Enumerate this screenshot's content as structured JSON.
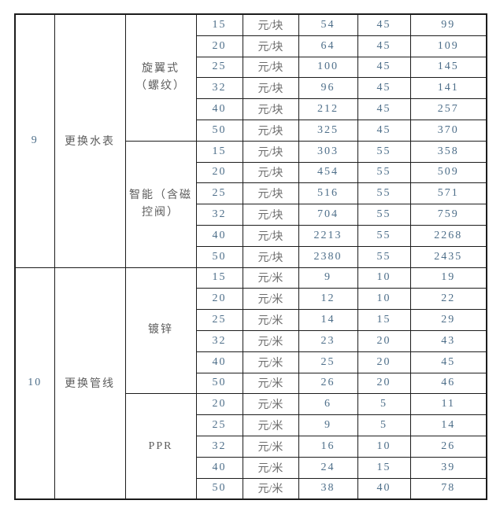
{
  "colors": {
    "border": "#1c1c1c",
    "chinese_text": "#5c5c5c",
    "number_text": "#4d6e89",
    "background": "#ffffff"
  },
  "table": {
    "sections": [
      {
        "no": "9",
        "category": "更换水表",
        "groups": [
          {
            "name_lines": [
              "旋翼式",
              "（螺纹）"
            ],
            "rows": [
              {
                "size": "15",
                "unit": "元/块",
                "v1": "54",
                "v2": "45",
                "total": "99"
              },
              {
                "size": "20",
                "unit": "元/块",
                "v1": "64",
                "v2": "45",
                "total": "109"
              },
              {
                "size": "25",
                "unit": "元/块",
                "v1": "100",
                "v2": "45",
                "total": "145"
              },
              {
                "size": "32",
                "unit": "元/块",
                "v1": "96",
                "v2": "45",
                "total": "141"
              },
              {
                "size": "40",
                "unit": "元/块",
                "v1": "212",
                "v2": "45",
                "total": "257"
              },
              {
                "size": "50",
                "unit": "元/块",
                "v1": "325",
                "v2": "45",
                "total": "370"
              }
            ]
          },
          {
            "name_lines": [
              "智能（含磁",
              "控阀）"
            ],
            "rows": [
              {
                "size": "15",
                "unit": "元/块",
                "v1": "303",
                "v2": "55",
                "total": "358"
              },
              {
                "size": "20",
                "unit": "元/块",
                "v1": "454",
                "v2": "55",
                "total": "509"
              },
              {
                "size": "25",
                "unit": "元/块",
                "v1": "516",
                "v2": "55",
                "total": "571"
              },
              {
                "size": "32",
                "unit": "元/块",
                "v1": "704",
                "v2": "55",
                "total": "759"
              },
              {
                "size": "40",
                "unit": "元/块",
                "v1": "2213",
                "v2": "55",
                "total": "2268"
              },
              {
                "size": "50",
                "unit": "元/块",
                "v1": "2380",
                "v2": "55",
                "total": "2435"
              }
            ]
          }
        ]
      },
      {
        "no": "10",
        "category": "更换管线",
        "groups": [
          {
            "name_lines": [
              "镀锌"
            ],
            "rows": [
              {
                "size": "15",
                "unit": "元/米",
                "v1": "9",
                "v2": "10",
                "total": "19"
              },
              {
                "size": "20",
                "unit": "元/米",
                "v1": "12",
                "v2": "10",
                "total": "22"
              },
              {
                "size": "25",
                "unit": "元/米",
                "v1": "14",
                "v2": "15",
                "total": "29"
              },
              {
                "size": "32",
                "unit": "元/米",
                "v1": "23",
                "v2": "20",
                "total": "43"
              },
              {
                "size": "40",
                "unit": "元/米",
                "v1": "25",
                "v2": "20",
                "total": "45"
              },
              {
                "size": "50",
                "unit": "元/米",
                "v1": "26",
                "v2": "20",
                "total": "46"
              }
            ]
          },
          {
            "name_lines": [
              "PPR"
            ],
            "rows": [
              {
                "size": "20",
                "unit": "元/米",
                "v1": "6",
                "v2": "5",
                "total": "11"
              },
              {
                "size": "25",
                "unit": "元/米",
                "v1": "9",
                "v2": "5",
                "total": "14"
              },
              {
                "size": "32",
                "unit": "元/米",
                "v1": "16",
                "v2": "10",
                "total": "26"
              },
              {
                "size": "40",
                "unit": "元/米",
                "v1": "24",
                "v2": "15",
                "total": "39"
              },
              {
                "size": "50",
                "unit": "元/米",
                "v1": "38",
                "v2": "40",
                "total": "78"
              }
            ]
          }
        ]
      }
    ]
  }
}
